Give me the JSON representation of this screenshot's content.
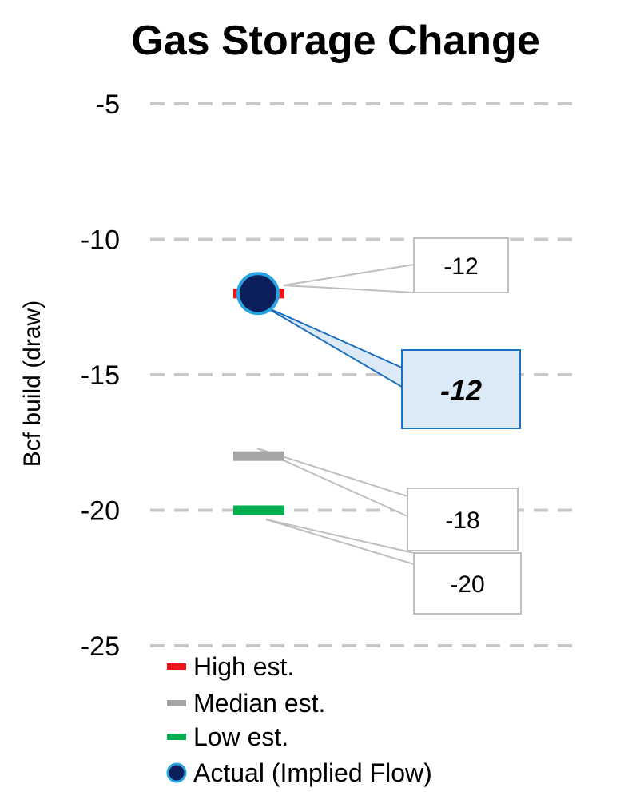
{
  "chart_data": {
    "type": "scatter",
    "title": "Gas Storage Change",
    "ylabel": "Bcf build (draw)",
    "ylim": [
      -25,
      -5
    ],
    "yticks": [
      -5,
      -10,
      -15,
      -20,
      -25
    ],
    "grid": true,
    "gridStyle": "dashed",
    "legend_position": "bottom-left",
    "series": [
      {
        "name": "High est.",
        "marker": "dash",
        "color": "#e8151b",
        "value": -12,
        "label": "-12"
      },
      {
        "name": "Median est.",
        "marker": "dash",
        "color": "#a6a6a6",
        "value": -18,
        "label": "-18"
      },
      {
        "name": "Low est.",
        "marker": "dash",
        "color": "#00b050",
        "value": -20,
        "label": "-20"
      },
      {
        "name": "Actual (Implied Flow)",
        "marker": "circle",
        "color": "#0b1f5c",
        "edgeColor": "#29a3e0",
        "value": -12,
        "label": "-12"
      }
    ]
  }
}
